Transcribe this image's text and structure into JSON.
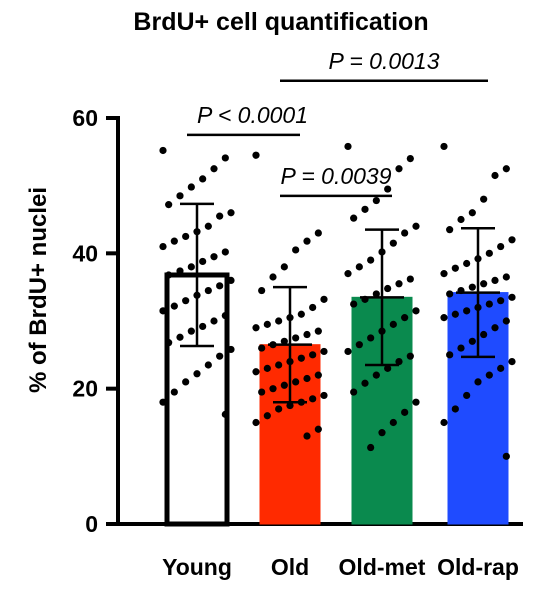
{
  "chart_data": {
    "type": "bar",
    "title": "BrdU+ cell quantification",
    "ylabel": "% of BrdU+ nuclei",
    "xlabel": "",
    "ylim": [
      0,
      60
    ],
    "yticks": [
      0,
      20,
      40,
      60
    ],
    "categories": [
      "Young",
      "Old",
      "Old-met",
      "Old-rap"
    ],
    "values": [
      36.8,
      26.5,
      33.5,
      34.2
    ],
    "error_sd": [
      10.5,
      8.5,
      10.0,
      9.5
    ],
    "colors": [
      "#ffffff",
      "#ff2a00",
      "#0a8a4e",
      "#1f4bff"
    ],
    "bar_outline": [
      "#000000",
      "#ff2a00",
      "#0a8a4e",
      "#1f4bff"
    ],
    "points": [
      [
        55.2,
        54.1,
        52.5,
        51.0,
        49.8,
        48.5,
        47.2,
        46.0,
        45.5,
        44.0,
        43.2,
        42.5,
        41.8,
        41.0,
        40.2,
        39.5,
        38.8,
        38.0,
        37.4,
        36.8,
        36.0,
        35.2,
        34.5,
        33.8,
        33.0,
        32.2,
        31.5,
        30.8,
        30.0,
        29.2,
        28.5,
        27.6,
        26.8,
        25.8,
        24.8,
        23.5,
        22.2,
        21.0,
        19.5,
        18.0,
        16.2
      ],
      [
        54.5,
        43.0,
        41.8,
        40.5,
        38.0,
        36.5,
        34.5,
        33.2,
        32.0,
        31.0,
        30.5,
        30.0,
        29.5,
        29.0,
        28.5,
        28.0,
        27.5,
        27.0,
        26.5,
        26.0,
        25.5,
        25.0,
        24.5,
        24.0,
        23.5,
        23.0,
        22.5,
        22.0,
        21.5,
        21.0,
        20.5,
        20.0,
        19.5,
        19.0,
        18.5,
        18.0,
        17.5,
        17.0,
        16.0,
        15.0,
        14.0,
        13.0
      ],
      [
        55.8,
        54.0,
        52.5,
        49.5,
        47.8,
        46.5,
        45.2,
        44.0,
        43.0,
        41.5,
        40.2,
        39.0,
        38.0,
        37.0,
        36.2,
        35.5,
        34.8,
        34.0,
        33.2,
        32.5,
        31.5,
        30.5,
        29.5,
        28.5,
        27.5,
        26.5,
        25.5,
        24.8,
        24.0,
        23.0,
        22.0,
        20.8,
        19.5,
        18.0,
        16.5,
        15.0,
        13.5,
        11.3
      ],
      [
        55.8,
        52.5,
        51.5,
        48.0,
        46.0,
        45.0,
        43.5,
        42.0,
        41.0,
        40.0,
        39.2,
        38.5,
        37.8,
        37.0,
        36.5,
        36.0,
        35.5,
        35.0,
        34.5,
        34.0,
        33.5,
        33.0,
        32.5,
        32.0,
        31.5,
        31.0,
        30.5,
        30.0,
        29.0,
        28.0,
        27.0,
        26.0,
        25.0,
        24.0,
        23.0,
        22.0,
        21.0,
        19.0,
        17.0,
        15.0,
        10.0
      ]
    ],
    "comparisons": [
      {
        "from": "Young",
        "to": "Old",
        "label": "P < 0.0001",
        "y": 57.5
      },
      {
        "from": "Old",
        "to": "Old-met",
        "label": "P = 0.0039",
        "y": 48.5
      },
      {
        "from": "Old",
        "to": "Old-rap",
        "label": "P = 0.0013",
        "y": 65.5
      }
    ]
  }
}
